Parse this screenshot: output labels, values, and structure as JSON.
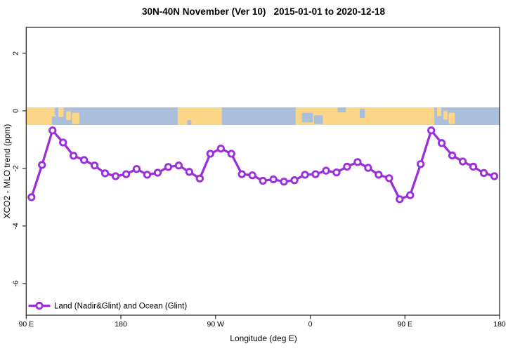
{
  "title": "30N-40N November (Ver 10)   2015-01-01 to 2020-12-18",
  "legend": {
    "label": "Land (Nadir&Glint) and Ocean (Glint)"
  },
  "chart_data": {
    "type": "line",
    "title": "30N-40N November (Ver 10)   2015-01-01 to 2020-12-18",
    "xlabel": "Longitude (deg E)",
    "ylabel": "XCO2 - MLO trend (ppm)",
    "xlim": [
      90,
      540
    ],
    "ylim": [
      -7.1,
      2.9
    ],
    "grid": false,
    "legend_position": "bottom-left-inside",
    "x_axis": {
      "ticks": [
        {
          "value": 90,
          "label": "90 E"
        },
        {
          "value": 180,
          "label": "180"
        },
        {
          "value": 270,
          "label": "90 W"
        },
        {
          "value": 360,
          "label": "0"
        },
        {
          "value": 450,
          "label": "90 E"
        },
        {
          "value": 540,
          "label": "180"
        }
      ]
    },
    "y_axis": {
      "ticks": [
        {
          "value": 2,
          "label": "2"
        },
        {
          "value": 0,
          "label": "0"
        },
        {
          "value": -2,
          "label": "-2"
        },
        {
          "value": -4,
          "label": "-4"
        },
        {
          "value": -6,
          "label": "-6"
        }
      ]
    },
    "series": [
      {
        "name": "Land (Nadir&Glint) and Ocean (Glint)",
        "color": "#9B2FD8",
        "marker": "open-circle",
        "x": [
          95,
          105,
          115,
          125,
          135,
          145,
          155,
          165,
          175,
          185,
          195,
          205,
          215,
          225,
          235,
          245,
          255,
          265,
          275,
          285,
          295,
          305,
          315,
          325,
          335,
          345,
          355,
          365,
          375,
          385,
          395,
          405,
          415,
          425,
          435,
          445,
          455,
          465,
          475,
          485,
          495,
          505,
          515,
          525,
          535
        ],
        "y": [
          -3.0,
          -1.88,
          -0.68,
          -1.1,
          -1.56,
          -1.71,
          -1.9,
          -2.17,
          -2.27,
          -2.2,
          -2.02,
          -2.22,
          -2.15,
          -1.95,
          -1.9,
          -2.12,
          -2.35,
          -1.49,
          -1.31,
          -1.49,
          -2.2,
          -2.24,
          -2.43,
          -2.38,
          -2.46,
          -2.41,
          -2.22,
          -2.2,
          -2.08,
          -2.14,
          -1.94,
          -1.78,
          -1.98,
          -2.22,
          -2.34,
          -3.07,
          -2.93,
          -1.85,
          -0.68,
          -1.12,
          -1.55,
          -1.76,
          -1.94,
          -2.16,
          -2.27
        ]
      }
    ],
    "map_band": {
      "description": "world map strip of the 30N-40N latitude band drawn along y=0",
      "ocean_color": "#A9BFDB",
      "land_color": "#FBD687",
      "top_value": 0.12,
      "bottom_value": -0.49,
      "land": [
        {
          "x1": 90,
          "x2": 118.5,
          "y1": 0,
          "y2": 1,
          "note": "East Asia mainland"
        },
        {
          "x1": 120.5,
          "x2": 125.5,
          "y1": 0,
          "y2": 0.55,
          "note": "Korea"
        },
        {
          "x1": 128,
          "x2": 132.5,
          "y1": 0.22,
          "y2": 0.72,
          "note": "Japan west"
        },
        {
          "x1": 133.5,
          "x2": 140.5,
          "y1": 0.3,
          "y2": 0.95,
          "note": "Japan east"
        },
        {
          "x1": 234,
          "x2": 276,
          "y1": 0,
          "y2": 1,
          "note": "North America"
        },
        {
          "x1": 346,
          "x2": 478,
          "y1": 0,
          "y2": 1,
          "note": "N Africa / Middle East / Asia"
        },
        {
          "x1": 480.5,
          "x2": 484.5,
          "y1": 0,
          "y2": 0.5,
          "note": "Korea 2nd pass"
        },
        {
          "x1": 486.5,
          "x2": 490.5,
          "y1": 0.2,
          "y2": 0.7,
          "note": "Japan 2nd pass west"
        },
        {
          "x1": 491.5,
          "x2": 497.5,
          "y1": 0.3,
          "y2": 0.95,
          "note": "Japan 2nd pass east"
        }
      ],
      "water": [
        {
          "x1": 114.5,
          "x2": 118.5,
          "y1": 0.5,
          "y2": 1,
          "note": "East China Sea"
        },
        {
          "x1": 117,
          "x2": 120.5,
          "y1": 0,
          "y2": 0.45,
          "note": "Yellow Sea"
        },
        {
          "x1": 243,
          "x2": 247,
          "y1": 0.72,
          "y2": 1,
          "note": "Gulf of California"
        },
        {
          "x1": 352,
          "x2": 362.5,
          "y1": 0.3,
          "y2": 0.85,
          "note": "West Mediterranean"
        },
        {
          "x1": 363.5,
          "x2": 372,
          "y1": 0.45,
          "y2": 0.95,
          "note": "East Mediterranean"
        },
        {
          "x1": 386,
          "x2": 394,
          "y1": 0,
          "y2": 0.28,
          "note": "Black Sea"
        },
        {
          "x1": 407,
          "x2": 412,
          "y1": 0.08,
          "y2": 0.6,
          "note": "Caspian Sea"
        }
      ]
    },
    "frame_color": "#2e2e2e"
  }
}
